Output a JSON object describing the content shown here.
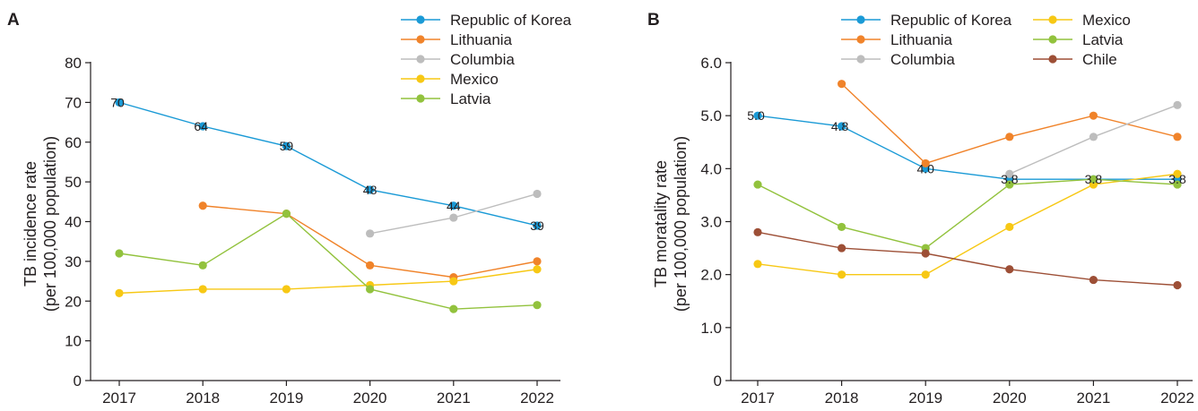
{
  "chart_data": [
    {
      "panel": "A",
      "type": "line",
      "ylabel": [
        "TB incidence rate",
        "(per 100,000 population)"
      ],
      "ylim": [
        0,
        80
      ],
      "yticks": [
        0,
        10,
        20,
        30,
        40,
        50,
        60,
        70,
        80
      ],
      "categories": [
        "2017",
        "2018",
        "2019",
        "2020",
        "2021",
        "2022"
      ],
      "legend_position": "top-right",
      "grid": false,
      "series": [
        {
          "name": "Republic of Korea",
          "color": "#1a9ad6",
          "values": [
            70,
            64,
            59,
            48,
            44,
            39
          ],
          "labels": [
            "70",
            "64",
            "59",
            "48",
            "44",
            "39"
          ]
        },
        {
          "name": "Lithuania",
          "color": "#f0832a",
          "values": [
            null,
            44,
            42,
            29,
            26,
            30
          ],
          "labels": []
        },
        {
          "name": "Columbia",
          "color": "#bdbdbd",
          "values": [
            null,
            null,
            null,
            37,
            41,
            47
          ],
          "labels": []
        },
        {
          "name": "Mexico",
          "color": "#f7c814",
          "values": [
            22,
            23,
            23,
            24,
            25,
            28
          ],
          "labels": []
        },
        {
          "name": "Latvia",
          "color": "#92c23d",
          "values": [
            32,
            29,
            42,
            23,
            18,
            19
          ],
          "labels": []
        }
      ]
    },
    {
      "panel": "B",
      "type": "line",
      "ylabel": [
        "TB moratality rate",
        "(per 100,000 population)"
      ],
      "ylim": [
        0,
        6
      ],
      "yticks": [
        "0",
        "1.0",
        "2.0",
        "3.0",
        "4.0",
        "5.0",
        "6.0"
      ],
      "categories": [
        "2017",
        "2018",
        "2019",
        "2020",
        "2021",
        "2022"
      ],
      "legend_position": "top-right",
      "grid": false,
      "series": [
        {
          "name": "Republic of Korea",
          "color": "#1a9ad6",
          "values": [
            5.0,
            4.8,
            4.0,
            3.8,
            3.8,
            3.8
          ],
          "labels": [
            "5.0",
            "4.8",
            "4.0",
            "3.8",
            "3.8",
            "3.8"
          ]
        },
        {
          "name": "Lithuania",
          "color": "#f0832a",
          "values": [
            null,
            5.6,
            4.1,
            4.6,
            5.0,
            4.6
          ],
          "labels": []
        },
        {
          "name": "Columbia",
          "color": "#bdbdbd",
          "values": [
            null,
            null,
            null,
            3.9,
            4.6,
            5.2
          ],
          "labels": []
        },
        {
          "name": "Mexico",
          "color": "#f7c814",
          "values": [
            2.2,
            2.0,
            2.0,
            2.9,
            3.7,
            3.9
          ],
          "labels": []
        },
        {
          "name": "Latvia",
          "color": "#92c23d",
          "values": [
            3.7,
            2.9,
            2.5,
            3.7,
            3.8,
            3.7
          ],
          "labels": []
        },
        {
          "name": "Chile",
          "color": "#9d4f36",
          "values": [
            2.8,
            2.5,
            2.4,
            2.1,
            1.9,
            1.8
          ],
          "labels": []
        }
      ]
    }
  ]
}
